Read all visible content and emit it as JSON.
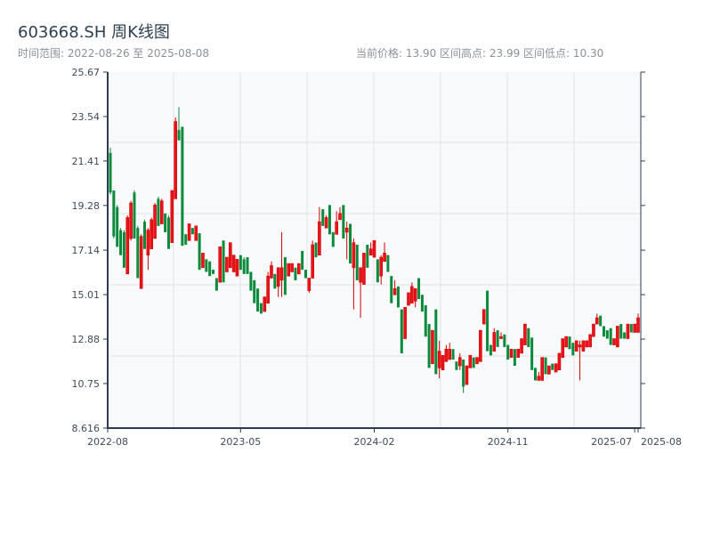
{
  "header": {
    "title": "603668.SH 周K线图",
    "range_text": "时间范围: 2022-08-26 至 2025-08-08",
    "stats_text": "当前价格: 13.90  区间高点: 23.99  区间低点: 10.30"
  },
  "colors": {
    "up": "#d40000",
    "down": "#0a8a3a",
    "grid": "#e1e4e8",
    "plot_bg": "#f7f9fb",
    "axis": "#2c3e50"
  },
  "chart_data": {
    "type": "candlestick",
    "title": "603668.SH 周K线图",
    "start_date": "2022-08-26",
    "end_date": "2025-08-08",
    "ylim": [
      8.616,
      25.67
    ],
    "yticks": [
      "25.67",
      "23.54",
      "21.41",
      "19.28",
      "17.14",
      "15.01",
      "12.88",
      "10.75",
      "8.616"
    ],
    "xticks": [
      {
        "label": "2022-08",
        "week": 0
      },
      {
        "label": "2023-05",
        "week": 38
      },
      {
        "label": "2024-02",
        "week": 77
      },
      {
        "label": "2024-11",
        "week": 116
      },
      {
        "label": "2025-07",
        "week": 153
      },
      {
        "label": "2025-08",
        "week": 154
      }
    ],
    "fields": [
      "open",
      "high",
      "low",
      "close"
    ],
    "candles": [
      [
        21.8,
        22.05,
        19.8,
        19.9
      ],
      [
        20.0,
        20.0,
        17.7,
        17.8
      ],
      [
        19.2,
        19.3,
        17.3,
        17.3
      ],
      [
        18.1,
        18.2,
        16.9,
        16.9
      ],
      [
        18.0,
        18.1,
        16.3,
        16.3
      ],
      [
        16.0,
        18.8,
        16.0,
        18.7
      ],
      [
        17.7,
        19.5,
        17.6,
        19.4
      ],
      [
        19.9,
        20.0,
        17.7,
        17.7
      ],
      [
        18.2,
        18.3,
        15.8,
        15.8
      ],
      [
        15.3,
        17.9,
        15.3,
        17.8
      ],
      [
        18.5,
        18.6,
        17.2,
        17.2
      ],
      [
        16.9,
        18.2,
        16.2,
        18.1
      ],
      [
        17.2,
        18.7,
        17.2,
        18.6
      ],
      [
        17.7,
        19.4,
        17.7,
        19.3
      ],
      [
        19.6,
        19.7,
        18.3,
        18.3
      ],
      [
        18.4,
        19.6,
        18.4,
        19.5
      ],
      [
        18.9,
        18.9,
        18.0,
        18.0
      ],
      [
        18.7,
        18.8,
        17.2,
        17.2
      ],
      [
        17.5,
        20.0,
        17.5,
        20.0
      ],
      [
        19.6,
        23.5,
        19.6,
        23.3
      ],
      [
        22.9,
        23.99,
        22.4,
        22.4
      ],
      [
        23.05,
        23.05,
        17.35,
        17.35
      ],
      [
        17.9,
        17.9,
        17.4,
        17.4
      ],
      [
        17.6,
        18.4,
        17.6,
        18.4
      ],
      [
        18.2,
        18.2,
        17.9,
        17.9
      ],
      [
        17.6,
        18.3,
        17.6,
        18.3
      ],
      [
        17.95,
        17.95,
        16.2,
        16.2
      ],
      [
        16.3,
        17.0,
        16.3,
        17.0
      ],
      [
        16.7,
        16.7,
        16.1,
        16.1
      ],
      [
        16.6,
        16.6,
        15.9,
        15.9
      ],
      [
        16.2,
        16.2,
        16.0,
        16.0
      ],
      [
        15.8,
        15.8,
        15.2,
        15.2
      ],
      [
        15.6,
        17.3,
        15.6,
        17.3
      ],
      [
        17.6,
        17.6,
        15.6,
        15.6
      ],
      [
        16.1,
        16.8,
        16.1,
        16.8
      ],
      [
        16.3,
        17.5,
        16.3,
        17.5
      ],
      [
        16.1,
        16.9,
        16.1,
        16.9
      ],
      [
        15.9,
        16.7,
        15.9,
        16.7
      ],
      [
        16.9,
        16.9,
        16.2,
        16.2
      ],
      [
        16.7,
        16.8,
        16.0,
        16.0
      ],
      [
        16.8,
        16.8,
        16.0,
        16.0
      ],
      [
        16.1,
        16.1,
        15.2,
        15.2
      ],
      [
        15.7,
        15.7,
        14.6,
        14.6
      ],
      [
        15.3,
        15.3,
        14.2,
        14.2
      ],
      [
        14.6,
        14.6,
        14.1,
        14.1
      ],
      [
        14.2,
        14.9,
        14.2,
        14.9
      ],
      [
        14.6,
        16.1,
        14.6,
        15.9
      ],
      [
        15.8,
        16.6,
        15.8,
        16.4
      ],
      [
        16.0,
        16.0,
        15.3,
        15.3
      ],
      [
        15.4,
        16.3,
        14.9,
        16.3
      ],
      [
        15.7,
        18.0,
        14.9,
        16.3
      ],
      [
        16.8,
        16.8,
        15.0,
        15.0
      ],
      [
        15.9,
        16.5,
        15.9,
        16.5
      ],
      [
        16.1,
        16.5,
        16.1,
        16.5
      ],
      [
        16.3,
        16.3,
        15.7,
        15.7
      ],
      [
        16.0,
        16.5,
        16.0,
        16.5
      ],
      [
        17.1,
        17.1,
        16.2,
        16.2
      ],
      [
        16.2,
        16.2,
        15.8,
        15.8
      ],
      [
        15.2,
        15.8,
        15.1,
        15.8
      ],
      [
        15.8,
        17.6,
        15.8,
        17.4
      ],
      [
        17.5,
        17.5,
        16.8,
        16.8
      ],
      [
        16.9,
        19.2,
        16.9,
        18.5
      ],
      [
        19.1,
        19.1,
        18.3,
        18.3
      ],
      [
        18.2,
        18.8,
        18.2,
        18.7
      ],
      [
        19.3,
        19.3,
        17.9,
        17.9
      ],
      [
        18.0,
        18.0,
        17.3,
        17.3
      ],
      [
        17.9,
        19.0,
        17.9,
        18.5
      ],
      [
        18.6,
        19.2,
        18.6,
        18.9
      ],
      [
        19.3,
        19.3,
        17.7,
        17.7
      ],
      [
        18.0,
        18.5,
        16.7,
        18.2
      ],
      [
        18.4,
        18.4,
        16.5,
        16.5
      ],
      [
        16.3,
        17.7,
        14.3,
        17.5
      ],
      [
        17.4,
        17.4,
        15.7,
        15.7
      ],
      [
        15.6,
        16.3,
        13.9,
        16.3
      ],
      [
        15.5,
        17.0,
        15.5,
        17.0
      ],
      [
        17.4,
        17.4,
        16.3,
        16.3
      ],
      [
        16.9,
        17.5,
        16.9,
        17.2
      ],
      [
        16.8,
        17.6,
        16.8,
        17.6
      ],
      [
        16.7,
        16.7,
        15.6,
        15.6
      ],
      [
        15.9,
        16.9,
        15.5,
        16.8
      ],
      [
        16.6,
        17.5,
        16.6,
        17.0
      ],
      [
        16.9,
        16.9,
        16.1,
        16.1
      ],
      [
        15.9,
        15.9,
        14.6,
        14.6
      ],
      [
        15.0,
        15.7,
        15.0,
        15.3
      ],
      [
        15.4,
        15.4,
        14.4,
        14.4
      ],
      [
        14.3,
        14.3,
        12.2,
        12.2
      ],
      [
        12.9,
        14.4,
        12.9,
        14.4
      ],
      [
        14.5,
        15.1,
        14.5,
        15.1
      ],
      [
        14.6,
        15.6,
        14.6,
        15.4
      ],
      [
        14.7,
        15.3,
        14.4,
        15.3
      ],
      [
        15.8,
        15.8,
        14.8,
        14.8
      ],
      [
        15.0,
        15.0,
        14.2,
        14.2
      ],
      [
        14.5,
        14.5,
        13.0,
        13.0
      ],
      [
        13.6,
        13.6,
        11.5,
        11.5
      ],
      [
        11.7,
        13.3,
        11.7,
        13.3
      ],
      [
        14.3,
        14.3,
        11.2,
        11.2
      ],
      [
        11.5,
        12.8,
        11.0,
        12.3
      ],
      [
        11.4,
        12.1,
        11.4,
        12.1
      ],
      [
        11.8,
        12.6,
        11.8,
        12.4
      ],
      [
        11.9,
        12.7,
        11.9,
        12.4
      ],
      [
        12.4,
        12.4,
        11.9,
        11.9
      ],
      [
        11.8,
        11.8,
        11.4,
        11.4
      ],
      [
        11.6,
        12.2,
        11.4,
        12.0
      ],
      [
        11.9,
        11.9,
        10.3,
        10.6
      ],
      [
        10.7,
        11.6,
        10.7,
        11.6
      ],
      [
        11.5,
        12.1,
        11.5,
        12.1
      ],
      [
        12.0,
        12.0,
        11.5,
        11.5
      ],
      [
        11.7,
        12.0,
        11.7,
        12.0
      ],
      [
        11.8,
        13.3,
        11.8,
        13.3
      ],
      [
        13.6,
        14.3,
        13.6,
        14.3
      ],
      [
        15.2,
        15.2,
        12.3,
        12.3
      ],
      [
        12.6,
        12.6,
        12.1,
        12.1
      ],
      [
        12.3,
        13.4,
        12.3,
        13.2
      ],
      [
        13.3,
        13.3,
        12.5,
        12.5
      ],
      [
        12.9,
        13.2,
        12.9,
        13.0
      ],
      [
        13.1,
        13.1,
        12.5,
        12.5
      ],
      [
        12.6,
        12.6,
        11.9,
        11.9
      ],
      [
        12.0,
        12.4,
        12.0,
        12.4
      ],
      [
        12.4,
        12.4,
        11.6,
        11.6
      ],
      [
        12.0,
        12.4,
        12.0,
        12.4
      ],
      [
        12.2,
        12.9,
        12.2,
        12.9
      ],
      [
        12.6,
        13.6,
        12.6,
        13.6
      ],
      [
        13.4,
        13.4,
        12.5,
        12.5
      ],
      [
        12.95,
        12.95,
        11.4,
        11.4
      ],
      [
        11.5,
        11.5,
        10.9,
        10.9
      ],
      [
        10.9,
        11.3,
        10.9,
        11.1
      ],
      [
        10.9,
        12.0,
        10.9,
        12.0
      ],
      [
        12.0,
        12.0,
        11.2,
        11.2
      ],
      [
        11.2,
        11.6,
        11.2,
        11.6
      ],
      [
        11.7,
        11.7,
        11.4,
        11.4
      ],
      [
        11.3,
        11.7,
        11.3,
        11.7
      ],
      [
        11.4,
        12.2,
        11.4,
        12.2
      ],
      [
        12.0,
        12.9,
        12.0,
        12.9
      ],
      [
        12.5,
        13.0,
        12.5,
        13.0
      ],
      [
        13.0,
        13.0,
        12.4,
        12.4
      ],
      [
        12.7,
        12.7,
        12.1,
        12.1
      ],
      [
        12.3,
        12.8,
        12.3,
        12.8
      ],
      [
        12.5,
        12.8,
        10.9,
        12.6
      ],
      [
        12.3,
        12.8,
        12.3,
        12.8
      ],
      [
        12.5,
        12.8,
        12.5,
        12.8
      ],
      [
        12.5,
        13.1,
        12.5,
        13.1
      ],
      [
        13.0,
        13.6,
        13.0,
        13.6
      ],
      [
        13.6,
        14.1,
        13.6,
        13.9
      ],
      [
        14.0,
        14.0,
        13.5,
        13.5
      ],
      [
        13.5,
        13.5,
        13.0,
        13.0
      ],
      [
        13.3,
        13.3,
        12.9,
        12.9
      ],
      [
        13.4,
        13.4,
        12.6,
        12.6
      ],
      [
        12.6,
        12.9,
        12.6,
        12.9
      ],
      [
        12.5,
        13.5,
        12.5,
        13.5
      ],
      [
        13.6,
        13.6,
        12.9,
        12.9
      ],
      [
        13.2,
        13.2,
        12.9,
        12.9
      ],
      [
        12.9,
        13.6,
        12.9,
        13.6
      ],
      [
        13.6,
        13.6,
        13.2,
        13.2
      ],
      [
        13.2,
        13.6,
        13.2,
        13.6
      ],
      [
        13.2,
        14.1,
        13.2,
        13.9
      ]
    ]
  }
}
